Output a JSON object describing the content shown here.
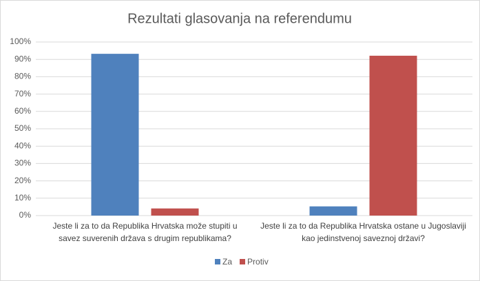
{
  "chart_data": {
    "type": "bar",
    "title": "Rezultati glasovanja na referendumu",
    "categories": [
      "Jeste li za to da Republika Hrvatska može stupiti u savez suverenih država s drugim republikama?",
      "Jeste li za to da Republika Hrvatska ostane u Jugoslaviji kao jedinstvenoj saveznoj državi?"
    ],
    "series": [
      {
        "name": "Za",
        "color": "#4f81bd",
        "values": [
          93.2,
          5.3
        ]
      },
      {
        "name": "Protiv",
        "color": "#c0504d",
        "values": [
          4.1,
          92.1
        ]
      }
    ],
    "ylim": [
      0,
      100
    ],
    "yticks": [
      {
        "value": 0,
        "label": "0%"
      },
      {
        "value": 10,
        "label": "10%"
      },
      {
        "value": 20,
        "label": "20%"
      },
      {
        "value": 30,
        "label": "30%"
      },
      {
        "value": 40,
        "label": "40%"
      },
      {
        "value": 50,
        "label": "50%"
      },
      {
        "value": 60,
        "label": "60%"
      },
      {
        "value": 70,
        "label": "70%"
      },
      {
        "value": 80,
        "label": "80%"
      },
      {
        "value": 90,
        "label": "90%"
      },
      {
        "value": 100,
        "label": "100%"
      }
    ],
    "grid": true,
    "legend": "bottom"
  }
}
